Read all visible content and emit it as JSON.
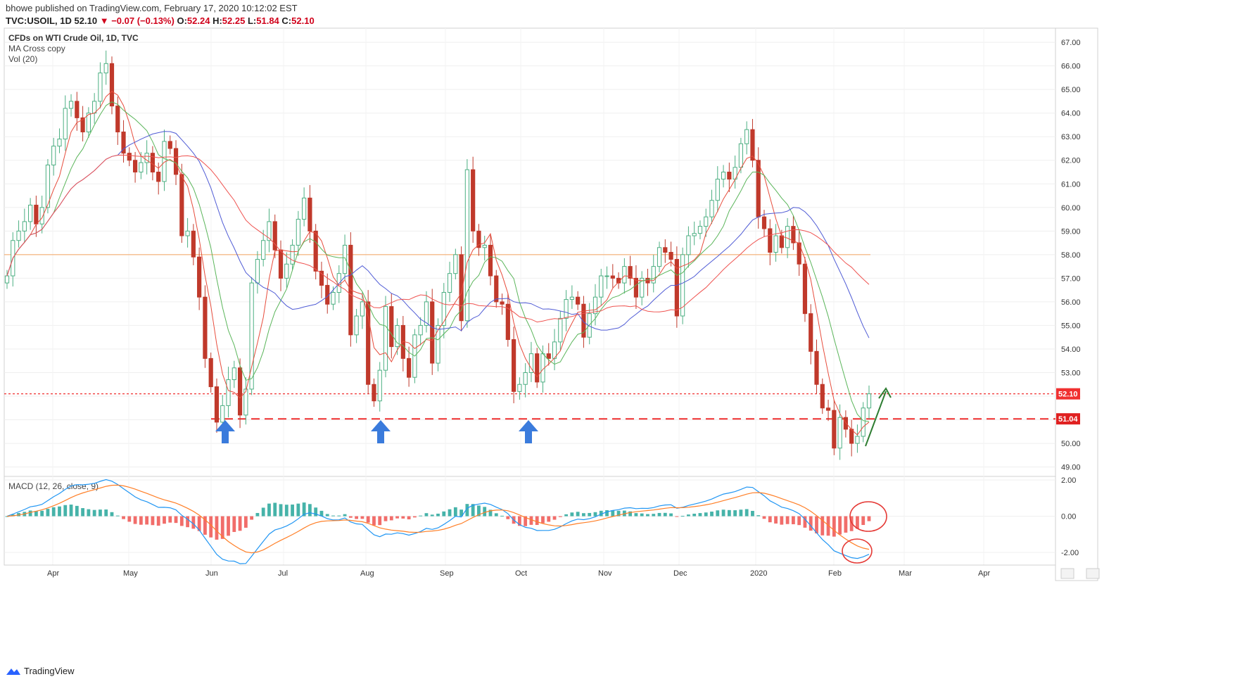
{
  "header": {
    "published": "bhowe published on TradingView.com, February 17, 2020 10:12:02 EST",
    "symbol": "TVC:USOIL, 1D",
    "last": "52.10",
    "change": "−0.07 (−0.13%)",
    "o_label": "O:",
    "o": "52.24",
    "h_label": "H:",
    "h": "52.25",
    "l_label": "L:",
    "l": "51.84",
    "c_label": "C:",
    "c": "52.10"
  },
  "legend": {
    "title": "CFDs on WTI Crude Oil, 1D, TVC",
    "indicator1": "MA Cross copy",
    "indicator2": "Vol (20)",
    "macd": "MACD (12, 26, close, 9)"
  },
  "footer": {
    "brand": "TradingView"
  },
  "colors": {
    "up": "#4caf82",
    "down": "#c0392b",
    "ma_fast": "#e74c3c",
    "ma_mid": "#5ab55a",
    "ma_blue": "#4f5bd5",
    "ma_red_slow": "#ef5350",
    "level": "#f4a460",
    "support": "#f03030",
    "arrow": "#3a7bdc",
    "green_arrow": "#2e7d32",
    "macd_line": "#2196f3",
    "signal_line": "#ff7f27",
    "hist_pos": "#26a69a",
    "hist_neg": "#ef5350"
  },
  "chart_data": [
    {
      "type": "candlestick",
      "title": "CFDs on WTI Crude Oil, 1D, TVC",
      "x_labels": [
        "Apr",
        "May",
        "Jun",
        "Jul",
        "Aug",
        "Sep",
        "Oct",
        "Nov",
        "Dec",
        "2020",
        "Feb",
        "Mar",
        "Apr"
      ],
      "y_ticks": [
        "67.00",
        "66.00",
        "65.00",
        "64.00",
        "63.00",
        "62.00",
        "61.00",
        "60.00",
        "59.00",
        "58.00",
        "57.00",
        "56.00",
        "55.00",
        "54.00",
        "53.00",
        "52.00",
        "51.00",
        "50.00",
        "49.00"
      ],
      "ylim": [
        48.6,
        67.6
      ],
      "price_tag": "52.10",
      "support_tag": "51.04",
      "horizontal_level": 58.0,
      "support_level": 51.04,
      "last_level": 52.1,
      "close_series": [
        57.1,
        58.6,
        59.0,
        59.4,
        60.1,
        59.3,
        60.0,
        61.8,
        62.6,
        62.9,
        64.2,
        64.5,
        63.8,
        63.2,
        64.0,
        64.5,
        65.7,
        66.1,
        64.3,
        63.2,
        62.3,
        62.0,
        61.5,
        61.9,
        62.3,
        61.5,
        61.1,
        62.8,
        62.5,
        61.4,
        58.8,
        59.0,
        57.9,
        56.2,
        53.6,
        52.4,
        50.9,
        51.6,
        52.7,
        53.2,
        51.2,
        52.3,
        56.8,
        57.8,
        58.6,
        59.4,
        58.2,
        57.0,
        57.6,
        58.4,
        59.5,
        60.4,
        59.0,
        57.3,
        56.7,
        55.9,
        56.4,
        57.2,
        58.4,
        54.6,
        55.4,
        56.0,
        52.5,
        51.8,
        53.1,
        55.8,
        54.1,
        55.0,
        53.6,
        52.8,
        54.6,
        55.0,
        56.0,
        53.4,
        55.0,
        56.4,
        57.2,
        58.0,
        55.2,
        61.6,
        59.0,
        58.3,
        58.4,
        57.1,
        56.0,
        55.9,
        54.4,
        52.2,
        52.5,
        53.0,
        53.8,
        52.6,
        53.8,
        53.6,
        54.3,
        55.3,
        56.1,
        56.2,
        55.9,
        54.5,
        55.5,
        56.2,
        57.1,
        57.1,
        57.0,
        56.8,
        57.5,
        57.0,
        56.2,
        57.0,
        56.8,
        57.5,
        58.3,
        58.1,
        57.8,
        55.4,
        58.0,
        58.8,
        58.9,
        59.2,
        59.6,
        60.3,
        61.2,
        61.5,
        61.2,
        61.7,
        62.7,
        63.3,
        62.0,
        59.6,
        59.1,
        58.1,
        58.8,
        58.3,
        59.2,
        58.5,
        57.6,
        55.5,
        53.9,
        52.5,
        51.5,
        51.4,
        49.8,
        51.1,
        50.6,
        50.0,
        50.3,
        51.5,
        52.1
      ]
    },
    {
      "type": "bar",
      "title": "MACD (12, 26, close, 9)",
      "y_ticks": [
        "2.00",
        "0.00",
        "-2.00"
      ],
      "ylim": [
        -2.7,
        2.2
      ]
    }
  ]
}
